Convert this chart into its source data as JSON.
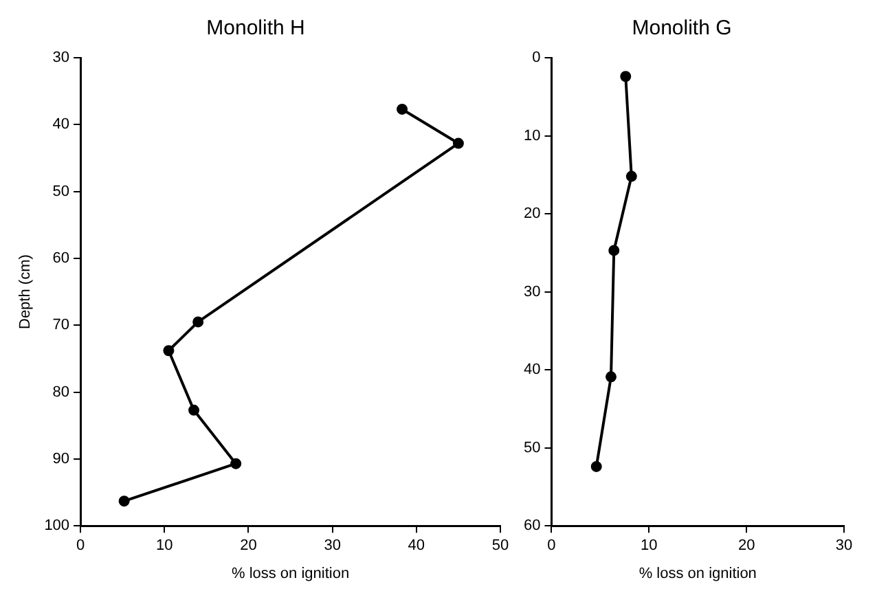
{
  "chart_data": [
    {
      "type": "line",
      "title": "Monolith H",
      "xlabel": "% loss on ignition",
      "ylabel": "Depth (cm)",
      "marker": "circle",
      "line_style": "solid",
      "grid": false,
      "legend": false,
      "xlim": [
        0,
        50
      ],
      "xticks": [
        0,
        10,
        20,
        30,
        40,
        50
      ],
      "ylim": [
        100,
        30
      ],
      "yticks": [
        30,
        40,
        50,
        60,
        70,
        80,
        90,
        100
      ],
      "series": [
        {
          "color": "#000000",
          "x": [
            38.3,
            45,
            14,
            10.5,
            13.5,
            18.5,
            5.2
          ],
          "values": [
            37.7,
            42.8,
            69.5,
            73.8,
            82.7,
            90.7,
            96.3
          ]
        }
      ]
    },
    {
      "type": "line",
      "title": "Monolith G",
      "xlabel": "% loss on ignition",
      "marker": "circle",
      "line_style": "solid",
      "grid": false,
      "legend": false,
      "xlim": [
        0,
        30
      ],
      "xticks": [
        0,
        10,
        20,
        30
      ],
      "ylim": [
        60,
        0
      ],
      "yticks": [
        0,
        10,
        20,
        30,
        40,
        50,
        60
      ],
      "series": [
        {
          "color": "#000000",
          "x": [
            7.6,
            8.2,
            6.4,
            6.1,
            4.6
          ],
          "values": [
            2.4,
            15.2,
            24.7,
            40.9,
            52.4
          ]
        }
      ]
    }
  ]
}
